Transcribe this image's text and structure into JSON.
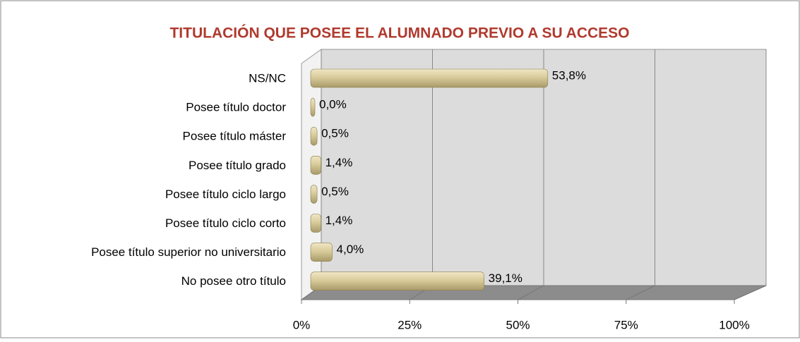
{
  "chart_data": {
    "type": "bar",
    "orientation": "horizontal",
    "title": "TITULACIÓN QUE POSEE EL ALUMNADO PREVIO A SU ACCESO",
    "categories": [
      "NS/NC",
      "Posee título doctor",
      "Posee título máster",
      "Posee título grado",
      "Posee título ciclo largo",
      "Posee título ciclo corto",
      "Posee título superior no universitario",
      "No posee otro título"
    ],
    "values": [
      53.8,
      0.0,
      0.5,
      1.4,
      0.5,
      1.4,
      4.0,
      39.1
    ],
    "value_labels": [
      "53,8%",
      "0,0%",
      "0,5%",
      "1,4%",
      "0,5%",
      "1,4%",
      "4,0%",
      "39,1%"
    ],
    "color": "#d9cb9a",
    "xlim": [
      0,
      100
    ],
    "xticks": [
      {
        "value": 0,
        "label": "0%"
      },
      {
        "value": 25,
        "label": "25%"
      },
      {
        "value": 50,
        "label": "50%"
      },
      {
        "value": 75,
        "label": "75%"
      },
      {
        "value": 100,
        "label": "100%"
      }
    ],
    "grid": true
  }
}
